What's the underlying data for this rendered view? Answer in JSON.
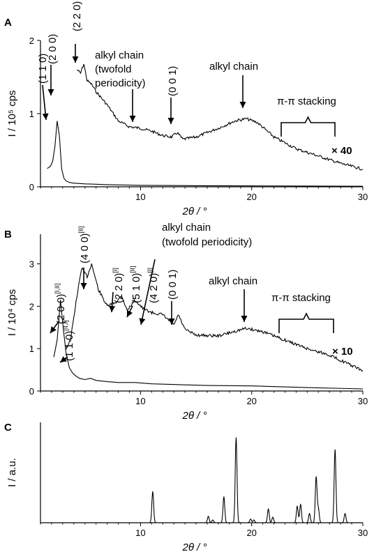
{
  "chart_data": [
    {
      "panel": "A",
      "type": "line",
      "xlabel": "2θ / °",
      "ylabel": "I / 10⁵ cps",
      "xlim": [
        1,
        30
      ],
      "ylim": [
        0,
        2
      ],
      "xticks": [
        10,
        20,
        30
      ],
      "yticks": [
        0,
        1,
        2
      ],
      "series": [
        {
          "x": [
            1.6,
            1.9,
            2.1,
            2.3,
            2.5,
            2.7,
            2.9,
            3.1,
            3.3,
            3.6,
            4,
            5,
            7,
            10,
            15,
            20,
            25,
            30
          ],
          "y": [
            0.25,
            0.28,
            0.35,
            0.55,
            0.9,
            0.7,
            0.25,
            0.12,
            0.08,
            0.06,
            0.05,
            0.04,
            0.03,
            0.02,
            0.015,
            0.012,
            0.01,
            0.008
          ]
        },
        {
          "scale_label": "× 40",
          "x": [
            4.3,
            4.6,
            4.9,
            5.2,
            5.6,
            6,
            7,
            8,
            9,
            10,
            11,
            12,
            12.8,
            13.3,
            13.8,
            15,
            17,
            18.5,
            19.5,
            20.5,
            22,
            24,
            26,
            28,
            30
          ],
          "y": [
            1.6,
            1.55,
            1.68,
            1.45,
            1.4,
            1.3,
            1.12,
            0.9,
            0.82,
            0.8,
            0.76,
            0.7,
            0.68,
            0.74,
            0.65,
            0.68,
            0.8,
            0.9,
            0.93,
            0.88,
            0.68,
            0.52,
            0.42,
            0.32,
            0.24
          ]
        }
      ],
      "annotations": [
        {
          "text": "(1 1 0)",
          "x": 1.8,
          "y": 0.95
        },
        {
          "text": "(2 0 0)",
          "x": 2.4,
          "y": 1.3
        },
        {
          "text": "(2 2 0)",
          "x": 4.9,
          "y": 1.68
        },
        {
          "text": "alkyl chain",
          "x": 10,
          "y": 0.8
        },
        {
          "text": "(twofold",
          "x": 10,
          "y": 0.8
        },
        {
          "text": "periodicity)",
          "x": 10,
          "y": 0.8
        },
        {
          "text": "(0 0 1)",
          "x": 13.3,
          "y": 0.8
        },
        {
          "text": "alkyl chain",
          "x": 19.5,
          "y": 1.1
        },
        {
          "text": "π-π stacking",
          "x": 25,
          "y": 0.72
        }
      ]
    },
    {
      "panel": "B",
      "type": "line",
      "xlabel": "2θ / °",
      "ylabel": "I / 10⁴ cps",
      "xlim": [
        1,
        30
      ],
      "ylim": [
        0,
        3.7
      ],
      "xticks": [
        10,
        20,
        30
      ],
      "yticks": [
        0,
        1,
        2,
        3
      ],
      "series": [
        {
          "x": [
            2.2,
            2.5,
            2.8,
            3.0,
            3.3,
            3.6,
            3.9,
            4.2,
            4.5,
            5,
            5.5,
            6,
            7,
            8,
            9.5,
            11,
            13.5,
            16,
            20,
            25,
            30
          ],
          "y": [
            0.8,
            1.2,
            2.15,
            1.6,
            0.9,
            0.55,
            0.42,
            0.35,
            0.3,
            0.27,
            0.3,
            0.25,
            0.22,
            0.2,
            0.2,
            0.17,
            0.15,
            0.13,
            0.12,
            0.08,
            0.05
          ]
        },
        {
          "scale_label": "× 10",
          "x": [
            3.3,
            3.7,
            4.2,
            4.7,
            5.2,
            5.6,
            6.2,
            7,
            7.8,
            8.3,
            8.8,
            9.5,
            10.2,
            11,
            12,
            13,
            13.4,
            14,
            15,
            17,
            19.5,
            21,
            23,
            25,
            27,
            29,
            30
          ],
          "y": [
            1.0,
            1.2,
            2.1,
            2.9,
            2.7,
            3.0,
            2.4,
            2.0,
            2.1,
            2.25,
            1.9,
            2.15,
            1.95,
            1.85,
            1.8,
            1.55,
            1.8,
            1.45,
            1.32,
            1.3,
            1.48,
            1.4,
            1.2,
            1.0,
            0.85,
            0.6,
            0.48
          ]
        }
      ],
      "annotations": [
        {
          "text": "(2 0 0)",
          "sup": "[I,II]",
          "x": 2.8,
          "y": 2.15
        },
        {
          "text": "(4 0 0)",
          "sup": "[II]",
          "x": 5.6,
          "y": 3.0
        },
        {
          "text": "(1 1 0)",
          "sup": "[II,I]",
          "x": 3.6,
          "y": 0.75
        },
        {
          "text": "(2 2 0)",
          "sup": "[I]",
          "x": 8.3,
          "y": 2.25
        },
        {
          "text": "(5 1 0)",
          "sup": "[II]",
          "x": 9.4,
          "y": 2.2
        },
        {
          "text": "(4 2 0)",
          "sup": "[I]",
          "x": 10.5,
          "y": 2.0
        },
        {
          "text": "alkyl chain",
          "x": 10.8,
          "y": 2.0
        },
        {
          "text": "(twofold periodicity)",
          "x": 10.8,
          "y": 2.0
        },
        {
          "text": "(0 0 1)",
          "x": 13.4,
          "y": 1.8
        },
        {
          "text": "alkyl chain",
          "x": 19.5,
          "y": 1.5
        },
        {
          "text": "π-π stacking",
          "x": 25,
          "y": 1.3
        }
      ]
    },
    {
      "panel": "C",
      "type": "line",
      "xlabel": "2θ / °",
      "ylabel": "I / a.u.",
      "xlim": [
        1,
        30
      ],
      "ylim": [
        0,
        1.1
      ],
      "xticks": [
        10,
        20,
        30
      ],
      "peaks": [
        {
          "x": 11.1,
          "y": 0.34
        },
        {
          "x": 16.1,
          "y": 0.07
        },
        {
          "x": 16.5,
          "y": 0.03
        },
        {
          "x": 17.5,
          "y": 0.28
        },
        {
          "x": 18.6,
          "y": 0.93
        },
        {
          "x": 19.9,
          "y": 0.04
        },
        {
          "x": 20.2,
          "y": 0.03
        },
        {
          "x": 21.5,
          "y": 0.15
        },
        {
          "x": 21.9,
          "y": 0.06
        },
        {
          "x": 24.1,
          "y": 0.18
        },
        {
          "x": 24.4,
          "y": 0.2
        },
        {
          "x": 25.2,
          "y": 0.1
        },
        {
          "x": 25.8,
          "y": 0.5
        },
        {
          "x": 26.0,
          "y": 0.15
        },
        {
          "x": 27.5,
          "y": 0.8
        },
        {
          "x": 28.4,
          "y": 0.1
        }
      ]
    }
  ]
}
